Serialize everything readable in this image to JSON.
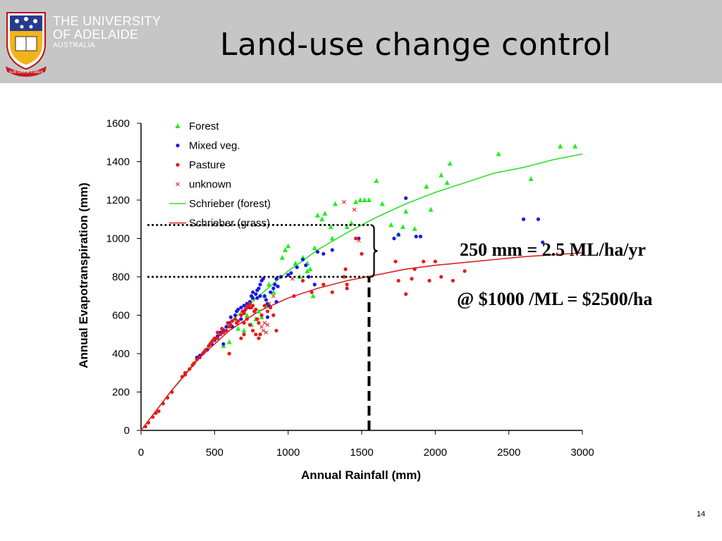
{
  "header": {
    "university_line1": "THE UNIVERSITY",
    "university_line2": "OF ADELAIDE",
    "university_line3": "AUSTRALIA",
    "motto": "SUB CRUCE LUMEN",
    "title": "Land-use change control",
    "background_color": "#c6c6c6"
  },
  "annotations": {
    "conversion": "250 mm = 2.5 ML/ha/yr",
    "cost": "@ $1000 /ML = $2500/ha"
  },
  "page_number": "14",
  "chart_data": {
    "type": "scatter",
    "xlabel": "Annual Rainfall (mm)",
    "ylabel": "Annual Evapotranspiration (mm)",
    "xlim": [
      0,
      3000
    ],
    "ylim": [
      0,
      1600
    ],
    "xticks": [
      "0",
      "500",
      "1000",
      "1500",
      "2000",
      "2500",
      "3000"
    ],
    "yticks": [
      "0",
      "200",
      "400",
      "600",
      "800",
      "1000",
      "1200",
      "1400",
      "1600"
    ],
    "grid": false,
    "legend_position": "top-left inside",
    "series": [
      {
        "name": "Forest",
        "marker": "triangle",
        "color": "#22ee22",
        "points": [
          [
            960,
            900
          ],
          [
            980,
            940
          ],
          [
            1000,
            960
          ],
          [
            1050,
            870
          ],
          [
            1100,
            900
          ],
          [
            1130,
            870
          ],
          [
            1150,
            840
          ],
          [
            1180,
            950
          ],
          [
            1200,
            1120
          ],
          [
            1230,
            1100
          ],
          [
            1250,
            1130
          ],
          [
            1290,
            1060
          ],
          [
            1300,
            1000
          ],
          [
            1320,
            1180
          ],
          [
            1400,
            1060
          ],
          [
            1430,
            1080
          ],
          [
            1460,
            1190
          ],
          [
            1490,
            1200
          ],
          [
            1520,
            1200
          ],
          [
            1550,
            1200
          ],
          [
            1600,
            1300
          ],
          [
            1640,
            1180
          ],
          [
            1700,
            1070
          ],
          [
            1750,
            1020
          ],
          [
            1780,
            1060
          ],
          [
            1800,
            1140
          ],
          [
            1860,
            1050
          ],
          [
            1940,
            1270
          ],
          [
            1970,
            1150
          ],
          [
            2040,
            1330
          ],
          [
            2080,
            1290
          ],
          [
            2100,
            1390
          ],
          [
            2430,
            1440
          ],
          [
            2650,
            1310
          ],
          [
            2850,
            1480
          ],
          [
            2950,
            1480
          ],
          [
            560,
            440
          ],
          [
            600,
            460
          ],
          [
            700,
            520
          ],
          [
            750,
            550
          ],
          [
            780,
            580
          ],
          [
            800,
            620
          ],
          [
            840,
            700
          ],
          [
            850,
            650
          ],
          [
            870,
            760
          ],
          [
            900,
            720
          ],
          [
            820,
            590
          ],
          [
            1080,
            800
          ],
          [
            1130,
            830
          ],
          [
            1170,
            700
          ],
          [
            760,
            690
          ],
          [
            720,
            600
          ],
          [
            660,
            530
          ]
        ]
      },
      {
        "name": "Mixed veg.",
        "marker": "circle",
        "color": "#1a1ae6",
        "points": [
          [
            380,
            380
          ],
          [
            400,
            390
          ],
          [
            450,
            420
          ],
          [
            480,
            450
          ],
          [
            500,
            470
          ],
          [
            520,
            490
          ],
          [
            540,
            510
          ],
          [
            560,
            520
          ],
          [
            580,
            540
          ],
          [
            600,
            560
          ],
          [
            610,
            590
          ],
          [
            620,
            540
          ],
          [
            640,
            600
          ],
          [
            650,
            620
          ],
          [
            660,
            630
          ],
          [
            680,
            640
          ],
          [
            700,
            650
          ],
          [
            720,
            660
          ],
          [
            740,
            670
          ],
          [
            750,
            700
          ],
          [
            760,
            690
          ],
          [
            780,
            710
          ],
          [
            790,
            730
          ],
          [
            800,
            740
          ],
          [
            810,
            760
          ],
          [
            820,
            780
          ],
          [
            830,
            790
          ],
          [
            840,
            700
          ],
          [
            850,
            680
          ],
          [
            860,
            660
          ],
          [
            870,
            650
          ],
          [
            880,
            720
          ],
          [
            900,
            740
          ],
          [
            910,
            760
          ],
          [
            920,
            790
          ],
          [
            930,
            750
          ],
          [
            950,
            800
          ],
          [
            1000,
            810
          ],
          [
            1020,
            820
          ],
          [
            1060,
            850
          ],
          [
            1100,
            890
          ],
          [
            1120,
            860
          ],
          [
            1140,
            800
          ],
          [
            1180,
            760
          ],
          [
            1200,
            930
          ],
          [
            1240,
            920
          ],
          [
            1300,
            940
          ],
          [
            1480,
            1000
          ],
          [
            1720,
            1000
          ],
          [
            1750,
            1020
          ],
          [
            1800,
            1210
          ],
          [
            1870,
            1010
          ],
          [
            1900,
            1010
          ],
          [
            2600,
            1100
          ],
          [
            2700,
            1100
          ],
          [
            2730,
            980
          ],
          [
            560,
            450
          ],
          [
            680,
            580
          ],
          [
            700,
            620
          ],
          [
            740,
            640
          ],
          [
            760,
            720
          ],
          [
            790,
            690
          ],
          [
            810,
            700
          ],
          [
            860,
            590
          ],
          [
            920,
            670
          ]
        ]
      },
      {
        "name": "Pasture",
        "marker": "circle",
        "color": "#e61a1a",
        "points": [
          [
            30,
            20
          ],
          [
            50,
            40
          ],
          [
            80,
            70
          ],
          [
            100,
            90
          ],
          [
            120,
            100
          ],
          [
            150,
            140
          ],
          [
            180,
            170
          ],
          [
            210,
            200
          ],
          [
            280,
            280
          ],
          [
            300,
            300
          ],
          [
            350,
            340
          ],
          [
            380,
            370
          ],
          [
            400,
            380
          ],
          [
            420,
            400
          ],
          [
            440,
            420
          ],
          [
            460,
            440
          ],
          [
            480,
            460
          ],
          [
            490,
            470
          ],
          [
            500,
            480
          ],
          [
            520,
            480
          ],
          [
            540,
            500
          ],
          [
            560,
            510
          ],
          [
            580,
            520
          ],
          [
            600,
            540
          ],
          [
            610,
            550
          ],
          [
            620,
            570
          ],
          [
            640,
            580
          ],
          [
            650,
            560
          ],
          [
            660,
            570
          ],
          [
            680,
            600
          ],
          [
            690,
            620
          ],
          [
            700,
            610
          ],
          [
            710,
            630
          ],
          [
            720,
            640
          ],
          [
            730,
            650
          ],
          [
            740,
            660
          ],
          [
            750,
            640
          ],
          [
            760,
            650
          ],
          [
            770,
            620
          ],
          [
            780,
            630
          ],
          [
            790,
            580
          ],
          [
            800,
            560
          ],
          [
            810,
            500
          ],
          [
            820,
            600
          ],
          [
            840,
            650
          ],
          [
            860,
            620
          ],
          [
            880,
            640
          ],
          [
            900,
            600
          ],
          [
            920,
            520
          ],
          [
            600,
            400
          ],
          [
            680,
            480
          ],
          [
            700,
            500
          ],
          [
            740,
            550
          ],
          [
            760,
            520
          ],
          [
            780,
            500
          ],
          [
            800,
            480
          ],
          [
            720,
            580
          ],
          [
            700,
            560
          ],
          [
            1040,
            700
          ],
          [
            1100,
            780
          ],
          [
            1160,
            720
          ],
          [
            1240,
            760
          ],
          [
            1300,
            720
          ],
          [
            1380,
            800
          ],
          [
            1390,
            840
          ],
          [
            1400,
            760
          ],
          [
            1400,
            740
          ],
          [
            1460,
            1000
          ],
          [
            1500,
            920
          ],
          [
            1730,
            880
          ],
          [
            1750,
            780
          ],
          [
            1800,
            710
          ],
          [
            1840,
            790
          ],
          [
            1860,
            840
          ],
          [
            1920,
            880
          ],
          [
            1960,
            780
          ],
          [
            2000,
            880
          ],
          [
            2040,
            800
          ],
          [
            2120,
            780
          ],
          [
            2200,
            830
          ],
          [
            300,
            290
          ],
          [
            330,
            320
          ],
          [
            360,
            350
          ],
          [
            430,
            410
          ],
          [
            470,
            450
          ],
          [
            520,
            510
          ],
          [
            550,
            530
          ],
          [
            590,
            560
          ]
        ]
      },
      {
        "name": "unknown",
        "marker": "x",
        "color": "#e61a1a",
        "points": [
          [
            820,
            540
          ],
          [
            830,
            520
          ],
          [
            840,
            560
          ],
          [
            850,
            510
          ],
          [
            860,
            550
          ],
          [
            870,
            660
          ],
          [
            900,
            700
          ],
          [
            1030,
            790
          ],
          [
            1380,
            1190
          ],
          [
            1450,
            1150
          ],
          [
            1470,
            1000
          ],
          [
            1480,
            990
          ]
        ]
      },
      {
        "name": "Schrieber (forest)",
        "marker": "line",
        "color": "#33dd33",
        "points": [
          [
            0,
            0
          ],
          [
            200,
            200
          ],
          [
            400,
            390
          ],
          [
            600,
            560
          ],
          [
            800,
            700
          ],
          [
            1000,
            830
          ],
          [
            1200,
            940
          ],
          [
            1400,
            1030
          ],
          [
            1600,
            1110
          ],
          [
            1800,
            1180
          ],
          [
            2000,
            1240
          ],
          [
            2200,
            1290
          ],
          [
            2400,
            1340
          ],
          [
            2600,
            1370
          ],
          [
            2800,
            1410
          ],
          [
            3000,
            1440
          ]
        ]
      },
      {
        "name": "Schrieber (grass)",
        "marker": "line",
        "color": "#dd2222",
        "points": [
          [
            0,
            0
          ],
          [
            200,
            200
          ],
          [
            400,
            380
          ],
          [
            600,
            520
          ],
          [
            800,
            620
          ],
          [
            1000,
            690
          ],
          [
            1200,
            740
          ],
          [
            1400,
            780
          ],
          [
            1600,
            810
          ],
          [
            1800,
            840
          ],
          [
            2000,
            860
          ],
          [
            2200,
            875
          ],
          [
            2400,
            890
          ],
          [
            2600,
            905
          ],
          [
            2800,
            915
          ],
          [
            3000,
            925
          ]
        ]
      }
    ],
    "reference_lines": [
      {
        "style": "dotted",
        "y": 1070,
        "x_from": 50,
        "x_to": 1550
      },
      {
        "style": "dotted",
        "y": 800,
        "x_from": 50,
        "x_to": 1550
      },
      {
        "style": "dashed",
        "x": 1550,
        "y_from": 0,
        "y_to": 800
      },
      {
        "style": "brace",
        "x": 1560,
        "y_from": 800,
        "y_to": 1070
      }
    ]
  }
}
